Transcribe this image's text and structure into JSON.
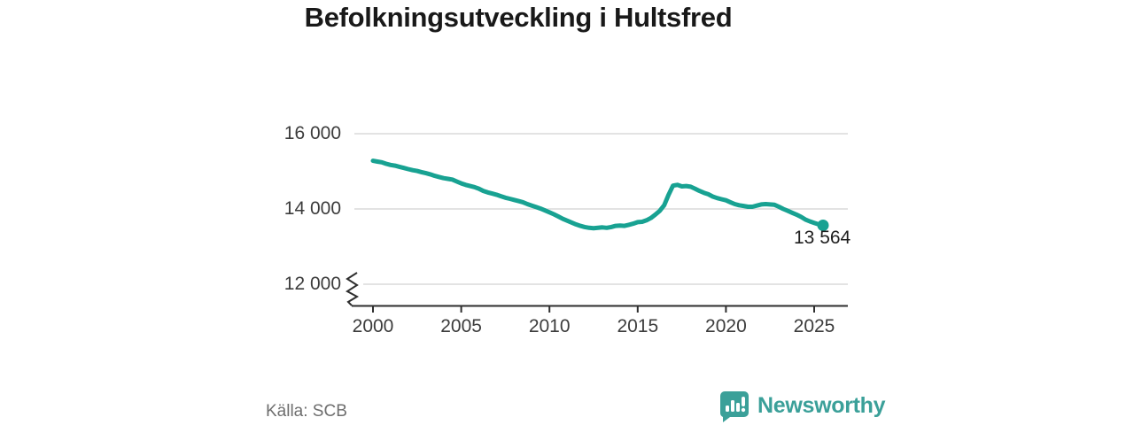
{
  "title": "Befolkningsutveckling i Hultsfred",
  "source": {
    "text": "Källa: SCB"
  },
  "branding": {
    "name": "Newsworthy",
    "icon": "speech-bubble-bar-chart-icon",
    "color": "#3ba099"
  },
  "chart_data": {
    "type": "line",
    "title": "Befolkningsutveckling i Hultsfred",
    "grid": "horizontal",
    "axis_break": true,
    "line_color": "#18a292",
    "grid_color": "#dadada",
    "axis_color": "#2e2e2e",
    "end_label": "13 564",
    "end_value": 13564,
    "xlim": [
      2000,
      2026
    ],
    "x_ticks": [
      {
        "value": 2000,
        "label": "2000"
      },
      {
        "value": 2005,
        "label": "2005"
      },
      {
        "value": 2010,
        "label": "2010"
      },
      {
        "value": 2015,
        "label": "2015"
      },
      {
        "value": 2020,
        "label": "2020"
      },
      {
        "value": 2025,
        "label": "2025"
      }
    ],
    "y_ticks": [
      {
        "value": 16000,
        "label": "16 000"
      },
      {
        "value": 14000,
        "label": "14 000"
      },
      {
        "value": 12000,
        "label": "12 000"
      }
    ],
    "series": [
      {
        "x_start": 2000,
        "x_step": 0.25,
        "x_end": 2025.5,
        "values": [
          15280,
          15260,
          15240,
          15200,
          15170,
          15150,
          15120,
          15090,
          15060,
          15030,
          15010,
          14980,
          14950,
          14920,
          14880,
          14850,
          14820,
          14800,
          14780,
          14730,
          14680,
          14640,
          14610,
          14580,
          14540,
          14480,
          14440,
          14410,
          14380,
          14340,
          14300,
          14270,
          14240,
          14210,
          14180,
          14130,
          14090,
          14050,
          14010,
          13960,
          13910,
          13860,
          13800,
          13740,
          13690,
          13640,
          13590,
          13550,
          13520,
          13500,
          13490,
          13500,
          13510,
          13500,
          13520,
          13550,
          13560,
          13550,
          13580,
          13610,
          13650,
          13660,
          13700,
          13760,
          13850,
          13950,
          14100,
          14380,
          14620,
          14640,
          14600,
          14610,
          14590,
          14540,
          14480,
          14430,
          14390,
          14330,
          14290,
          14260,
          14230,
          14180,
          14130,
          14100,
          14080,
          14060,
          14060,
          14090,
          14120,
          14130,
          14120,
          14110,
          14060,
          14000,
          13950,
          13900,
          13850,
          13790,
          13720,
          13670,
          13630,
          13590,
          13564
        ]
      }
    ]
  }
}
